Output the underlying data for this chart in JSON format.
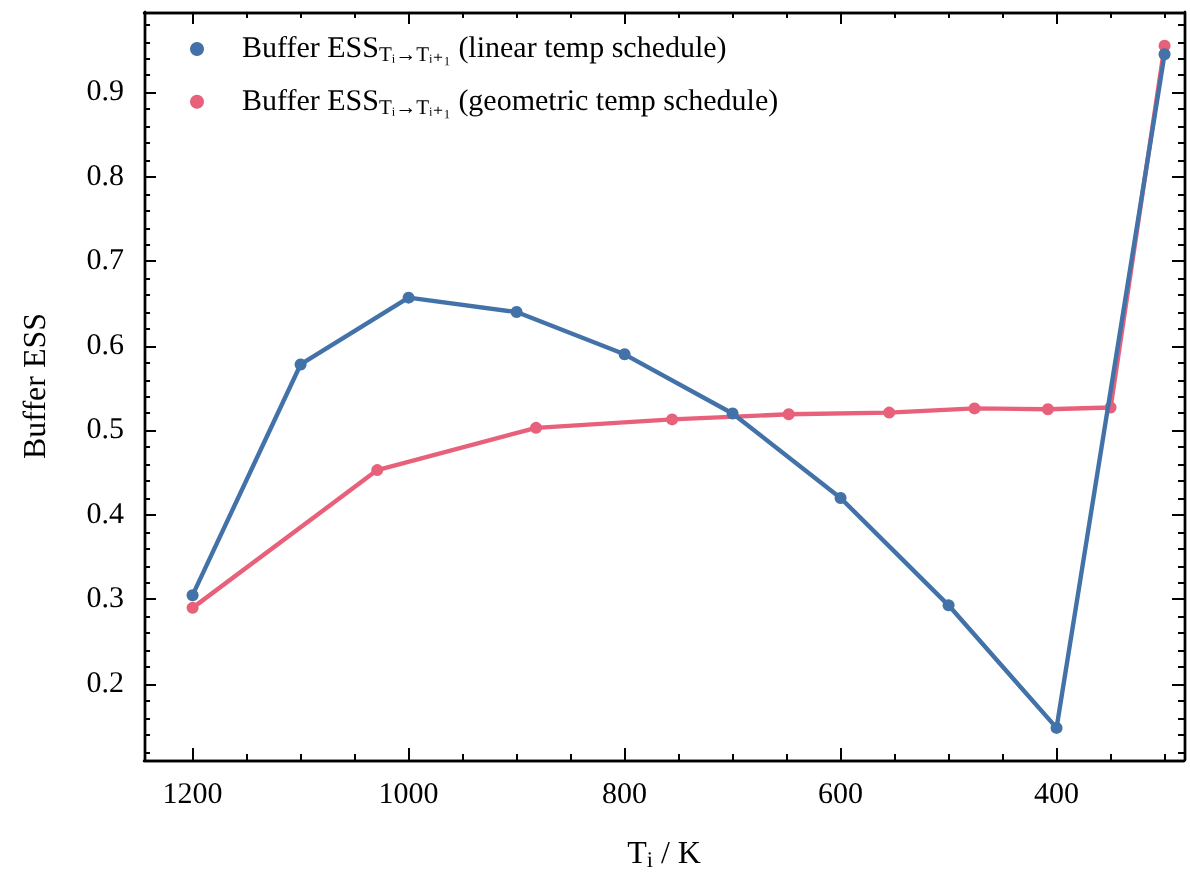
{
  "chart_data": {
    "type": "line",
    "xlabel": "T$_{i}$ / K",
    "ylabel": "Buffer ESS",
    "x": [
      1200,
      1100,
      1000,
      900,
      800,
      700,
      600,
      500,
      400,
      300
    ],
    "series": [
      {
        "name": "Buffer ESS$_{Tᵢ→Tᵢ₊₁}$ (linear temp schedule)",
        "color": "#4272a8",
        "values": [
          0.305,
          0.578,
          0.657,
          0.64,
          0.59,
          0.52,
          0.42,
          0.293,
          0.148,
          0.945
        ]
      },
      {
        "name": "Buffer ESS$_{Tᵢ→Tᵢ₊₁}$ (geometric temp schedule)",
        "color": "#e8617a",
        "x": [
          1200,
          1029,
          882,
          756,
          648,
          555,
          476,
          408,
          350,
          300
        ],
        "values": [
          0.29,
          0.453,
          0.503,
          0.513,
          0.519,
          0.521,
          0.526,
          0.525,
          0.527,
          0.955
        ]
      }
    ],
    "xlim": [
      1245,
      282
    ],
    "ylim": [
      0.11,
      0.995
    ],
    "xticks": [
      1200,
      {
        "value": 1150,
        "label": null
      },
      {
        "value": 1100,
        "label": null
      },
      {
        "value": 1050,
        "label": null
      },
      1000,
      {
        "value": 950,
        "label": null
      },
      {
        "value": 900,
        "label": null
      },
      {
        "value": 850,
        "label": null
      },
      800,
      {
        "value": 750,
        "label": null
      },
      {
        "value": 700,
        "label": null
      },
      {
        "value": 650,
        "label": null
      },
      600,
      {
        "value": 550,
        "label": null
      },
      {
        "value": 500,
        "label": null
      },
      {
        "value": 450,
        "label": null
      },
      400,
      {
        "value": 350,
        "label": null
      },
      {
        "value": 300,
        "label": null
      }
    ],
    "yticks": [
      {
        "value": 0.12,
        "label": null
      },
      {
        "value": 0.14,
        "label": null
      },
      {
        "value": 0.16,
        "label": null
      },
      {
        "value": 0.18,
        "label": null
      },
      0.2,
      {
        "value": 0.22,
        "label": null
      },
      {
        "value": 0.24,
        "label": null
      },
      {
        "value": 0.26,
        "label": null
      },
      {
        "value": 0.28,
        "label": null
      },
      0.3,
      {
        "value": 0.32,
        "label": null
      },
      {
        "value": 0.34,
        "label": null
      },
      {
        "value": 0.36,
        "label": null
      },
      {
        "value": 0.38,
        "label": null
      },
      0.4,
      {
        "value": 0.42,
        "label": null
      },
      {
        "value": 0.44,
        "label": null
      },
      {
        "value": 0.46,
        "label": null
      },
      {
        "value": 0.48,
        "label": null
      },
      0.5,
      {
        "value": 0.52,
        "label": null
      },
      {
        "value": 0.54,
        "label": null
      },
      {
        "value": 0.56,
        "label": null
      },
      {
        "value": 0.58,
        "label": null
      },
      0.6,
      {
        "value": 0.62,
        "label": null
      },
      {
        "value": 0.64,
        "label": null
      },
      {
        "value": 0.66,
        "label": null
      },
      {
        "value": 0.68,
        "label": null
      },
      0.7,
      {
        "value": 0.72,
        "label": null
      },
      {
        "value": 0.74,
        "label": null
      },
      {
        "value": 0.76,
        "label": null
      },
      {
        "value": 0.78,
        "label": null
      },
      0.8,
      {
        "value": 0.82,
        "label": null
      },
      {
        "value": 0.84,
        "label": null
      },
      {
        "value": 0.86,
        "label": null
      },
      {
        "value": 0.88,
        "label": null
      },
      0.9,
      {
        "value": 0.92,
        "label": null
      },
      {
        "value": 0.94,
        "label": null
      },
      {
        "value": 0.96,
        "label": null
      },
      {
        "value": 0.98,
        "label": null
      }
    ],
    "marker": "circle",
    "line_style": "solid",
    "legend": "top left",
    "grid": false
  }
}
